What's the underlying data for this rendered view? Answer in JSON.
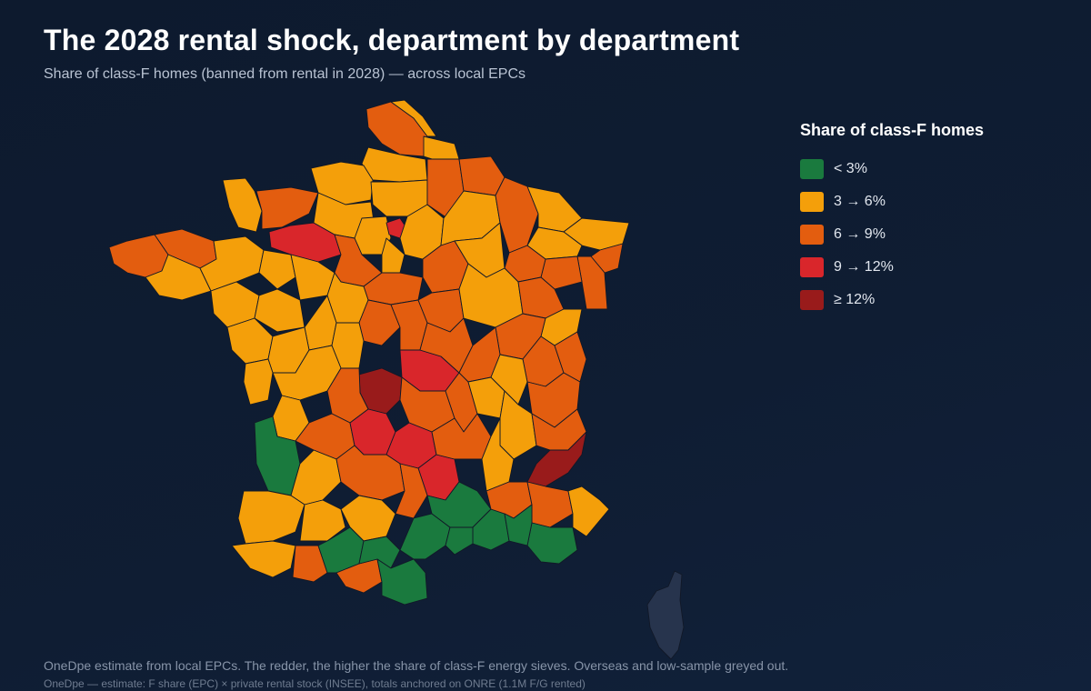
{
  "title": "The 2028 rental shock, department by department",
  "subtitle": "Share of class-F homes (banned from rental in 2028) — across local EPCs",
  "legend": {
    "title": "Share of class-F homes",
    "items": [
      {
        "label": "< 3%",
        "color": "#1a7a3e"
      },
      {
        "label": "3 → 6%",
        "color": "#f49f0a"
      },
      {
        "label": "6 → 9%",
        "color": "#e35d0f"
      },
      {
        "label": "9 → 12%",
        "color": "#d9262b"
      },
      {
        "label": "≥ 12%",
        "color": "#991b1b"
      }
    ]
  },
  "colors": {
    "lt3": "#1a7a3e",
    "3to6": "#f49f0a",
    "6to9": "#e35d0f",
    "9to12": "#d9262b",
    "ge12": "#991b1b",
    "greyed": "#27344d"
  },
  "footer": {
    "note": "OneDpe estimate from local EPCs. The redder, the higher the share of class-F energy sieves. Overseas and low-sample greyed out.",
    "source": "OneDpe — estimate: F share (EPC) × private rental stock (INSEE), totals anchored on ONRE (1.1M F/G rented)"
  }
}
